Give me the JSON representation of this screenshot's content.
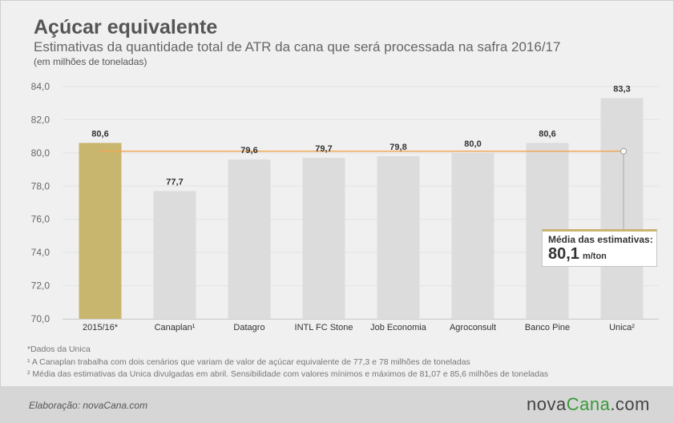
{
  "header": {
    "title": "Açúcar equivalente",
    "subtitle": "Estimativas da quantidade total de ATR da cana que será processada na safra 2016/17",
    "unit": "(em milhões de toneladas)"
  },
  "callout": {
    "label": "Média das estimativas:",
    "value": "80,1",
    "unit": "m/ton"
  },
  "notes": [
    "*Dados da Unica",
    "¹ A Canaplan trabalha com dois cenários que variam de valor de açúcar equivalente de 77,3 e 78 milhões de toneladas",
    "² Média das estimativas da Unica divulgadas em abril. Sensibilidade com valores mínimos e máximos de 81,07 e 85,6 milhões de toneladas"
  ],
  "footer": {
    "credit": "Elaboração: novaCana.com",
    "logo_part1": "nova",
    "logo_part2": "Cana",
    "logo_part3": ".com"
  },
  "chart_data": {
    "type": "bar",
    "categories": [
      "2015/16*",
      "Canaplan¹",
      "Datagro",
      "INTL FC Stone",
      "Job Economia",
      "Agroconsult",
      "Banco Pine",
      "Unica²"
    ],
    "values": [
      80.6,
      77.7,
      79.6,
      79.7,
      79.8,
      80.0,
      80.6,
      83.3
    ],
    "value_labels": [
      "80,6",
      "77,7",
      "79,6",
      "79,7",
      "79,8",
      "80,0",
      "80,6",
      "83,3"
    ],
    "highlight_index": 0,
    "average": 80.1,
    "ylim": [
      70,
      84
    ],
    "yticks": [
      70,
      72,
      74,
      76,
      78,
      80,
      82,
      84
    ],
    "ytick_labels": [
      "70,0",
      "72,0",
      "74,0",
      "76,0",
      "78,0",
      "80,0",
      "82,0",
      "84,0"
    ],
    "grid": true,
    "colors": {
      "highlight": "#c8b56e",
      "bar": "#dcdcdc",
      "average_line": "#f0a95a",
      "grid": "#e2e2e2"
    }
  }
}
